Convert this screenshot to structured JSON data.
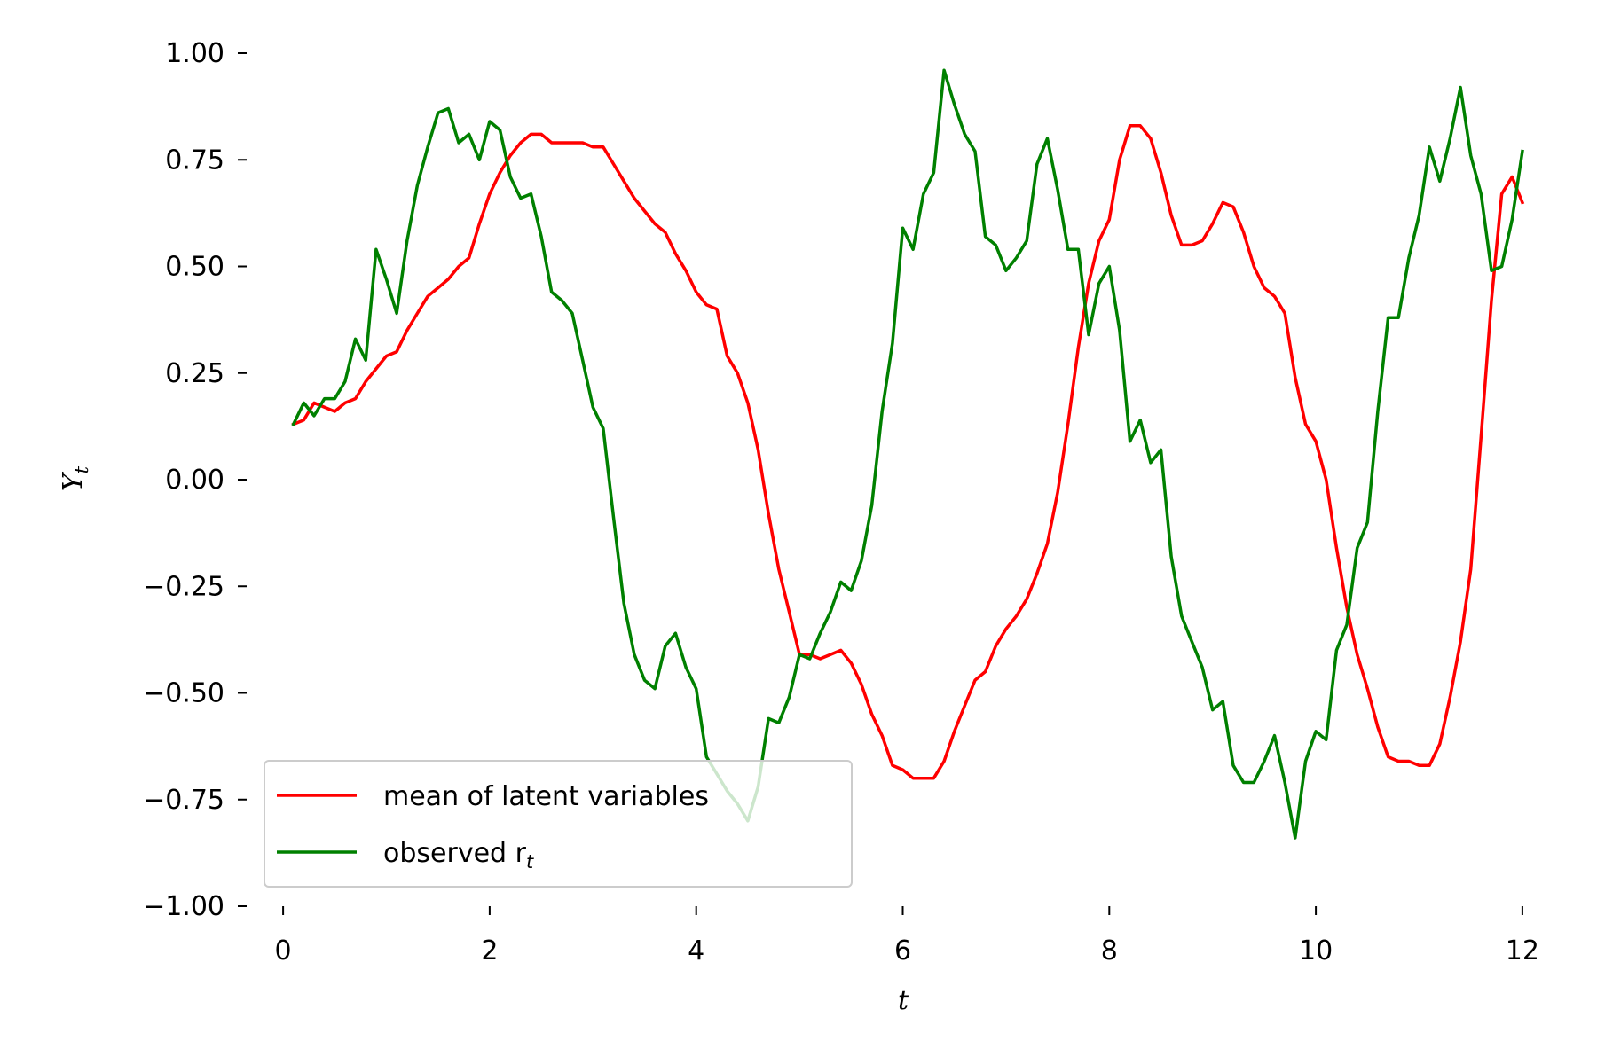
{
  "chart_data": {
    "type": "line",
    "title": "",
    "xlabel": "t",
    "ylabel": "Y",
    "ylabel_sub": "t",
    "xlim": [
      -0.25,
      12.25
    ],
    "ylim": [
      -1.0,
      1.0
    ],
    "xticks": [
      0,
      2,
      4,
      6,
      8,
      10,
      12
    ],
    "xtick_labels": [
      "0",
      "2",
      "4",
      "6",
      "8",
      "10",
      "12"
    ],
    "yticks": [
      1.0,
      0.75,
      0.5,
      0.25,
      0.0,
      -0.25,
      -0.5,
      -0.75,
      -1.0
    ],
    "ytick_labels": [
      "1.00",
      "0.75",
      "0.50",
      "0.25",
      "0.00",
      "−0.25",
      "−0.50",
      "−0.75",
      "−1.00"
    ],
    "grid": false,
    "legend_position": "lower-left",
    "x": [
      0.1,
      0.2,
      0.3,
      0.4,
      0.5,
      0.6,
      0.7,
      0.8,
      0.9,
      1.0,
      1.1,
      1.2,
      1.3,
      1.4,
      1.5,
      1.6,
      1.7,
      1.8,
      1.9,
      2.0,
      2.1,
      2.2,
      2.3,
      2.4,
      2.5,
      2.6,
      2.7,
      2.8,
      2.9,
      3.0,
      3.1,
      3.2,
      3.3,
      3.4,
      3.5,
      3.6,
      3.7,
      3.8,
      3.9,
      4.0,
      4.1,
      4.2,
      4.3,
      4.4,
      4.5,
      4.6,
      4.7,
      4.8,
      4.9,
      5.0,
      5.1,
      5.2,
      5.3,
      5.4,
      5.5,
      5.6,
      5.7,
      5.8,
      5.9,
      6.0,
      6.1,
      6.2,
      6.3,
      6.4,
      6.5,
      6.6,
      6.7,
      6.8,
      6.9,
      7.0,
      7.1,
      7.2,
      7.3,
      7.4,
      7.5,
      7.6,
      7.7,
      7.8,
      7.9,
      8.0,
      8.1,
      8.2,
      8.3,
      8.4,
      8.5,
      8.6,
      8.7,
      8.8,
      8.9,
      9.0,
      9.1,
      9.2,
      9.3,
      9.4,
      9.5,
      9.6,
      9.7,
      9.8,
      9.9,
      10.0,
      10.1,
      10.2,
      10.3,
      10.4,
      10.5,
      10.6,
      10.7,
      10.8,
      10.9,
      11.0,
      11.1,
      11.2,
      11.3,
      11.4,
      11.5,
      11.6,
      11.7,
      11.8,
      11.9,
      12.0
    ],
    "series": [
      {
        "name": "mean of latent variables",
        "color": "#ff0000",
        "values": [
          0.13,
          0.14,
          0.18,
          0.17,
          0.16,
          0.18,
          0.19,
          0.23,
          0.26,
          0.29,
          0.3,
          0.35,
          0.39,
          0.43,
          0.45,
          0.47,
          0.5,
          0.52,
          0.6,
          0.67,
          0.72,
          0.76,
          0.79,
          0.81,
          0.81,
          0.79,
          0.79,
          0.79,
          0.79,
          0.78,
          0.78,
          0.74,
          0.7,
          0.66,
          0.63,
          0.6,
          0.58,
          0.53,
          0.49,
          0.44,
          0.41,
          0.4,
          0.29,
          0.25,
          0.18,
          0.07,
          -0.08,
          -0.21,
          -0.31,
          -0.41,
          -0.41,
          -0.42,
          -0.41,
          -0.4,
          -0.43,
          -0.48,
          -0.55,
          -0.6,
          -0.67,
          -0.68,
          -0.7,
          -0.7,
          -0.7,
          -0.66,
          -0.59,
          -0.53,
          -0.47,
          -0.45,
          -0.39,
          -0.35,
          -0.32,
          -0.28,
          -0.22,
          -0.15,
          -0.03,
          0.13,
          0.31,
          0.46,
          0.56,
          0.61,
          0.75,
          0.83,
          0.83,
          0.8,
          0.72,
          0.62,
          0.55,
          0.55,
          0.56,
          0.6,
          0.65,
          0.64,
          0.58,
          0.5,
          0.45,
          0.43,
          0.39,
          0.24,
          0.13,
          0.09,
          0.0,
          -0.16,
          -0.3,
          -0.41,
          -0.49,
          -0.58,
          -0.65,
          -0.66,
          -0.66,
          -0.67,
          -0.67,
          -0.62,
          -0.51,
          -0.38,
          -0.21,
          0.1,
          0.42,
          0.67,
          0.71,
          0.65
        ]
      },
      {
        "name": "observed r",
        "name_sub": "t",
        "color": "#008000",
        "values": [
          0.13,
          0.18,
          0.15,
          0.19,
          0.19,
          0.23,
          0.33,
          0.28,
          0.54,
          0.47,
          0.39,
          0.56,
          0.69,
          0.78,
          0.86,
          0.87,
          0.79,
          0.81,
          0.75,
          0.84,
          0.82,
          0.71,
          0.66,
          0.67,
          0.57,
          0.44,
          0.42,
          0.39,
          0.28,
          0.17,
          0.12,
          -0.09,
          -0.29,
          -0.41,
          -0.47,
          -0.49,
          -0.39,
          -0.36,
          -0.44,
          -0.49,
          -0.65,
          -0.69,
          -0.73,
          -0.76,
          -0.8,
          -0.72,
          -0.56,
          -0.57,
          -0.51,
          -0.41,
          -0.42,
          -0.36,
          -0.31,
          -0.24,
          -0.26,
          -0.19,
          -0.06,
          0.16,
          0.32,
          0.59,
          0.54,
          0.67,
          0.72,
          0.96,
          0.88,
          0.81,
          0.77,
          0.57,
          0.55,
          0.49,
          0.52,
          0.56,
          0.74,
          0.8,
          0.68,
          0.54,
          0.54,
          0.34,
          0.46,
          0.5,
          0.35,
          0.09,
          0.14,
          0.04,
          0.07,
          -0.18,
          -0.32,
          -0.38,
          -0.44,
          -0.54,
          -0.52,
          -0.67,
          -0.71,
          -0.71,
          -0.66,
          -0.6,
          -0.71,
          -0.84,
          -0.66,
          -0.59,
          -0.61,
          -0.4,
          -0.34,
          -0.16,
          -0.1,
          0.16,
          0.38,
          0.38,
          0.52,
          0.62,
          0.78,
          0.7,
          0.8,
          0.92,
          0.76,
          0.67,
          0.49,
          0.5,
          0.61,
          0.77
        ]
      }
    ]
  }
}
